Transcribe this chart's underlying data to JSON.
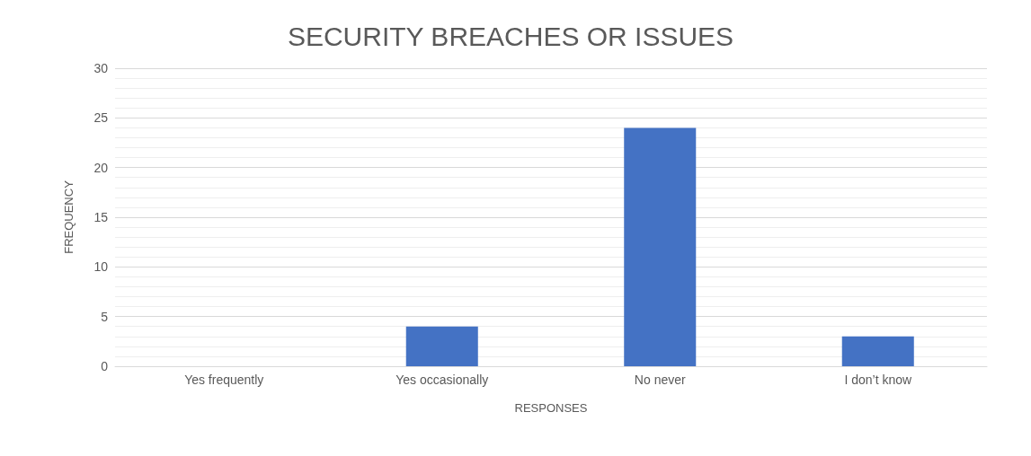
{
  "chart_data": {
    "type": "bar",
    "title": "SECURITY BREACHES OR ISSUES",
    "xlabel": "RESPONSES",
    "ylabel": "FREQUENCY",
    "categories": [
      "Yes frequently",
      "Yes occasionally",
      "No never",
      "I don’t know"
    ],
    "values": [
      0,
      4,
      24,
      3
    ],
    "color": "#4472c4",
    "ylim": [
      0,
      30
    ],
    "yticks": [
      0,
      5,
      10,
      15,
      20,
      25,
      30
    ],
    "grid": "y"
  }
}
